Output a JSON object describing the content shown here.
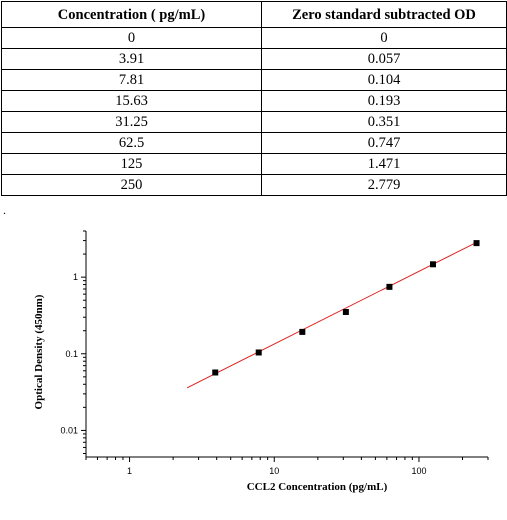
{
  "table": {
    "headers": [
      "Concentration ( pg/mL)",
      "Zero standard subtracted OD"
    ],
    "rows": [
      [
        "0",
        "0"
      ],
      [
        "3.91",
        "0.057"
      ],
      [
        "7.81",
        "0.104"
      ],
      [
        "15.63",
        "0.193"
      ],
      [
        "31.25",
        "0.351"
      ],
      [
        "62.5",
        "0.747"
      ],
      [
        "125",
        "1.471"
      ],
      [
        "250",
        "2.779"
      ]
    ]
  },
  "separator_text": ".",
  "chart_data": {
    "type": "scatter",
    "xlabel": "CCL2 Concentration (pg/mL)",
    "ylabel": "Optical Density (450nm)",
    "x_scale": "log",
    "y_scale": "log",
    "xlim": [
      0.5,
      300
    ],
    "ylim": [
      0.0045,
      4
    ],
    "x_ticks": [
      {
        "value": 1,
        "label": "1"
      },
      {
        "value": 10,
        "label": "10"
      },
      {
        "value": 100,
        "label": "100"
      }
    ],
    "y_ticks": [
      {
        "value": 0.01,
        "label": "0.01"
      },
      {
        "value": 0.1,
        "label": "0.1"
      },
      {
        "value": 1,
        "label": "1"
      }
    ],
    "grid": false,
    "series": [
      {
        "x": [
          3.91,
          7.81,
          15.63,
          31.25,
          62.5,
          125,
          250
        ],
        "y": [
          0.057,
          0.104,
          0.193,
          0.351,
          0.747,
          1.471,
          2.779
        ],
        "color": "#000000"
      }
    ],
    "fit_line": {
      "x": [
        2.5,
        260
      ],
      "y": [
        0.036,
        2.95
      ],
      "color": "#e02020"
    }
  }
}
